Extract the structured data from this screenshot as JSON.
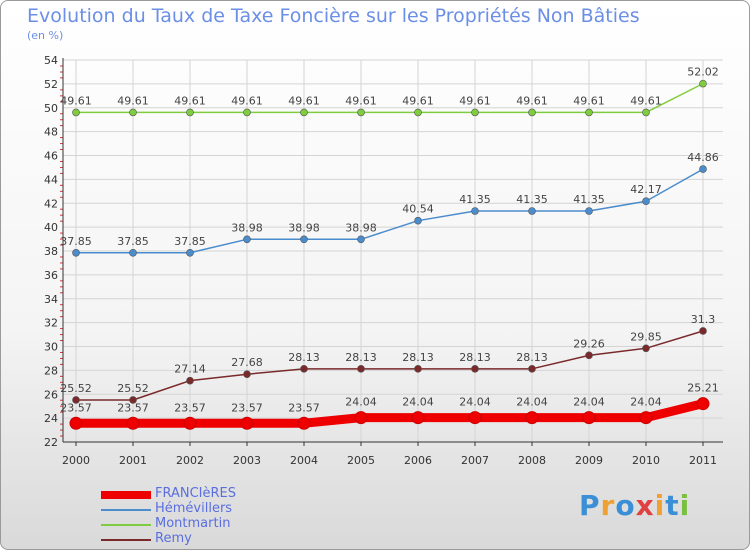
{
  "title": "Evolution du Taux de Taxe Foncière sur les Propriétés Non Bâties",
  "subtitle": "(en %)",
  "logo": {
    "text": "Proxiti",
    "letter_colors": [
      "#3a8fd6",
      "#f0a030",
      "#3a8fd6",
      "#e04040",
      "#f0a030",
      "#3a8fd6",
      "#7ac040"
    ]
  },
  "chart_data": {
    "type": "line",
    "title": "Evolution du Taux de Taxe Foncière sur les Propriétés Non Bâties",
    "ylabel": "(en %)",
    "xlabel": "",
    "x": [
      "2000",
      "2001",
      "2002",
      "2003",
      "2004",
      "2005",
      "2006",
      "2007",
      "2008",
      "2009",
      "2010",
      "2011"
    ],
    "ylim": [
      22,
      54
    ],
    "yticks": [
      "22",
      "24",
      "26",
      "28",
      "30",
      "32",
      "34",
      "36",
      "38",
      "40",
      "42",
      "44",
      "46",
      "48",
      "50",
      "52",
      "54"
    ],
    "grid": true,
    "legend_position": "bottom-left",
    "series": [
      {
        "name": "FRANCIèRES",
        "color": "#ee0000",
        "thick": true,
        "values": [
          23.57,
          23.57,
          23.57,
          23.57,
          23.57,
          24.04,
          24.04,
          24.04,
          24.04,
          24.04,
          24.04,
          25.21
        ],
        "labels": [
          "23.57",
          "23.57",
          "23.57",
          "23.57",
          "23.57",
          "24.04",
          "24.04",
          "24.04",
          "24.04",
          "24.04",
          "24.04",
          "25.21"
        ]
      },
      {
        "name": "Hémévillers",
        "color": "#4a8ccc",
        "thick": false,
        "values": [
          37.85,
          37.85,
          37.85,
          38.98,
          38.98,
          38.98,
          40.54,
          41.35,
          41.35,
          41.35,
          42.17,
          44.86
        ],
        "labels": [
          "37.85",
          "37.85",
          "37.85",
          "38.98",
          "38.98",
          "38.98",
          "40.54",
          "41.35",
          "41.35",
          "41.35",
          "42.17",
          "44.86"
        ]
      },
      {
        "name": "Montmartin",
        "color": "#80cc40",
        "thick": false,
        "values": [
          49.61,
          49.61,
          49.61,
          49.61,
          49.61,
          49.61,
          49.61,
          49.61,
          49.61,
          49.61,
          49.61,
          52.02
        ],
        "labels": [
          "49.61",
          "49.61",
          "49.61",
          "49.61",
          "49.61",
          "49.61",
          "49.61",
          "49.61",
          "49.61",
          "49.61",
          "49.61",
          "52.02"
        ]
      },
      {
        "name": "Remy",
        "color": "#7a2a2a",
        "thick": false,
        "values": [
          25.52,
          25.52,
          27.14,
          27.68,
          28.13,
          28.13,
          28.13,
          28.13,
          28.13,
          29.26,
          29.85,
          31.3
        ],
        "labels": [
          "25.52",
          "25.52",
          "27.14",
          "27.68",
          "28.13",
          "28.13",
          "28.13",
          "28.13",
          "28.13",
          "29.26",
          "29.85",
          "31.3"
        ]
      }
    ]
  }
}
